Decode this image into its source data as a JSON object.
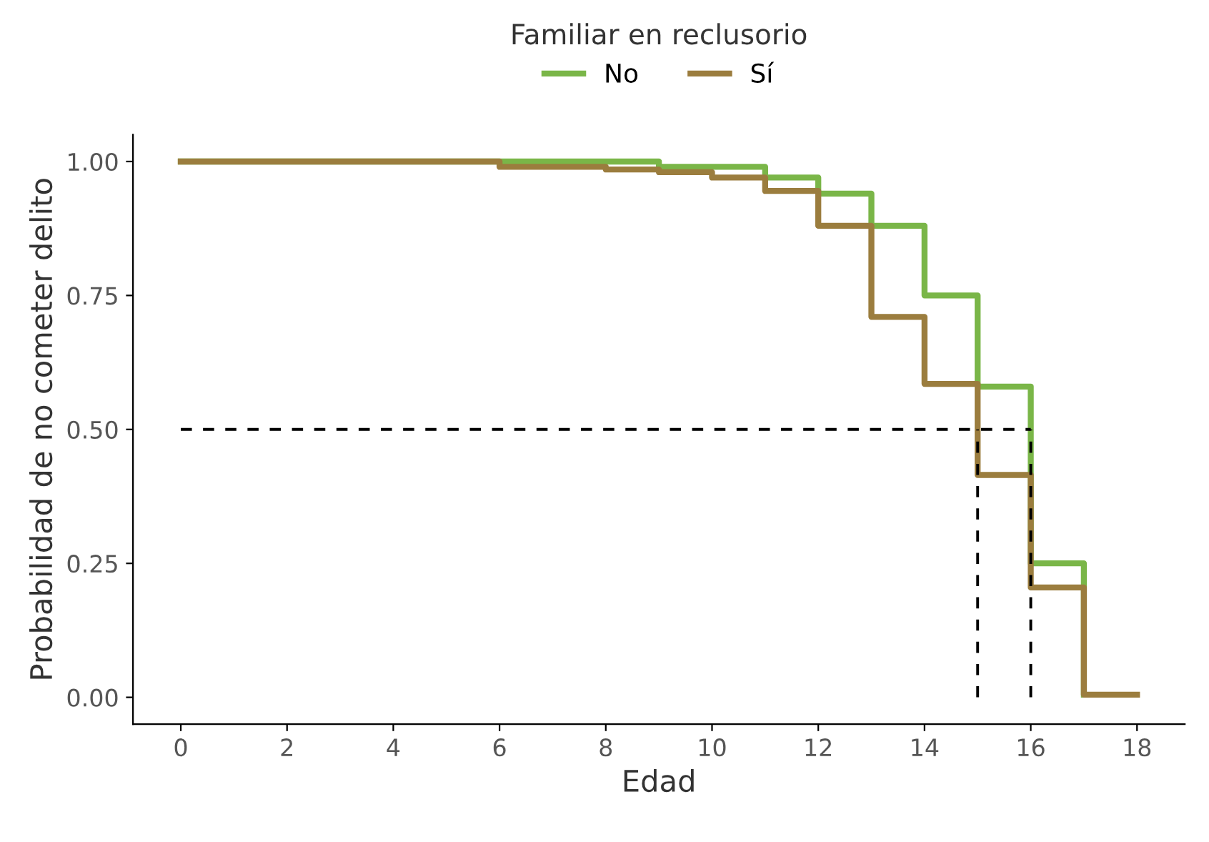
{
  "chart_data": {
    "type": "step",
    "xlabel": "Edad",
    "ylabel": "Probabilidad de no cometer delito",
    "legend_title": "Familiar en reclusorio",
    "legend": "top",
    "series": [
      {
        "name": "No",
        "color": "#7ab648",
        "x": [
          0,
          9,
          11,
          12,
          13,
          14,
          15,
          16,
          17
        ],
        "values": [
          1.0,
          0.99,
          0.97,
          0.94,
          0.88,
          0.75,
          0.58,
          0.25,
          0.005
        ]
      },
      {
        "name": "Sí",
        "color": "#9b7d3e",
        "x": [
          0,
          6,
          8,
          9,
          10,
          11,
          12,
          13,
          14,
          15,
          16,
          17,
          18
        ],
        "values": [
          1.0,
          0.99,
          0.985,
          0.98,
          0.97,
          0.945,
          0.88,
          0.71,
          0.585,
          0.415,
          0.205,
          0.005,
          0.005
        ]
      },
      {
        "type": "line",
        "color": "#000000",
        "line_style": "dashed",
        "x": [
          0,
          16
        ],
        "values": [
          0.5,
          0.5
        ]
      },
      {
        "type": "line",
        "color": "#000000",
        "line_style": "dashed",
        "x": [
          15,
          15
        ],
        "values": [
          0,
          0.5
        ]
      },
      {
        "type": "line",
        "color": "#000000",
        "line_style": "dashed",
        "x": [
          16,
          16
        ],
        "values": [
          0,
          0.5
        ]
      }
    ],
    "xlim": [
      -0.9,
      18.9
    ],
    "xticks": [
      0,
      2,
      4,
      6,
      8,
      10,
      12,
      14,
      16,
      18
    ],
    "ylim": [
      -0.05,
      1.05
    ],
    "yticks": [
      {
        "value": 0,
        "label": "0.00"
      },
      {
        "value": 0.25,
        "label": "0.25"
      },
      {
        "value": 0.5,
        "label": "0.50"
      },
      {
        "value": 0.75,
        "label": "0.75"
      },
      {
        "value": 1,
        "label": "1.00"
      }
    ],
    "grid": false
  }
}
